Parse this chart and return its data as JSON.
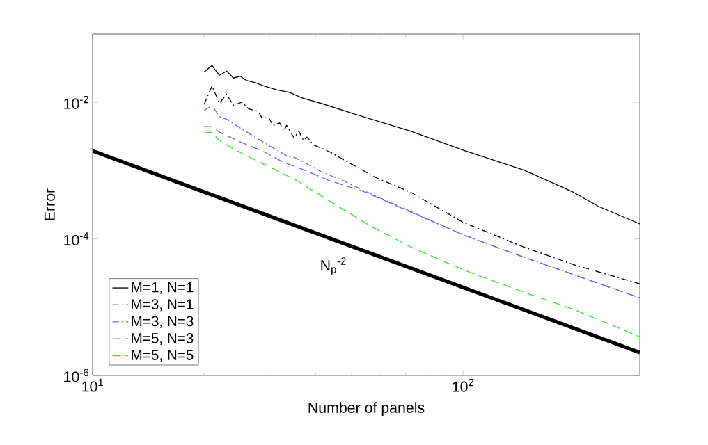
{
  "chart_data": {
    "type": "line",
    "xlabel": "Number of panels",
    "ylabel": "Error",
    "log": "xy",
    "xlim": [
      10,
      300
    ],
    "ylim": [
      1e-06,
      0.1
    ],
    "xticks": [
      {
        "value": 10,
        "label": "10$^{1}$"
      },
      {
        "value": 100,
        "label": "10$^{2}$"
      }
    ],
    "yticks": [
      {
        "value": 1e-06,
        "label": "10$^{-6}$"
      },
      {
        "value": 0.0001,
        "label": "10$^{-4}$"
      },
      {
        "value": 0.01,
        "label": "10$^{-2}$"
      }
    ],
    "grid": false,
    "legend": "bottom left",
    "marker": "none",
    "annotations": [
      "N$_{p}$$^{-2}$"
    ],
    "series": [
      {
        "name": "M=1, N=1",
        "color": "#000000",
        "line_style": "solid",
        "x": [
          20,
          21,
          22,
          23,
          24,
          25,
          26,
          27.5,
          29,
          31.4,
          34,
          36.8,
          41.3,
          49,
          72.4,
          100,
          146,
          199,
          232,
          300
        ],
        "values": [
          0.0279,
          0.0346,
          0.0249,
          0.0287,
          0.0227,
          0.0242,
          0.021,
          0.0194,
          0.0174,
          0.0153,
          0.014,
          0.0116,
          0.0097,
          0.0072,
          0.00377,
          0.002,
          0.00102,
          0.00048,
          0.0003,
          0.000166
        ]
      },
      {
        "name": "M=3, N=1",
        "color": "#000000",
        "line_style": "dashdot",
        "x": [
          20,
          21,
          22,
          23,
          24,
          25.3,
          26.4,
          28,
          28.7,
          29.8,
          30.7,
          32,
          32.8,
          33.4,
          35,
          36,
          37.1,
          37.9,
          39.5,
          43.7,
          49,
          53,
          58.2,
          72.4,
          100,
          146,
          199,
          300
        ],
        "values": [
          0.0093,
          0.0174,
          0.0097,
          0.0132,
          0.009,
          0.0101,
          0.008,
          0.0074,
          0.0058,
          0.0061,
          0.0046,
          0.005,
          0.0038,
          0.0046,
          0.003,
          0.0038,
          0.00277,
          0.0031,
          0.00238,
          0.00188,
          0.00132,
          0.00105,
          0.00079,
          0.00048,
          0.000175,
          7.6e-05,
          4.2e-05,
          2.2e-05
        ]
      },
      {
        "name": "M=3, N=3",
        "color": "#6464ff",
        "line_style": "dashdot",
        "x": [
          20,
          21,
          22,
          23.1,
          25.6,
          28,
          30.9,
          33.7,
          35.2,
          37.3,
          41.3,
          47.6,
          53.6,
          100,
          146,
          199,
          300
        ],
        "values": [
          0.00755,
          0.009,
          0.0062,
          0.0056,
          0.0039,
          0.0029,
          0.00211,
          0.00161,
          0.00155,
          0.00132,
          0.00097,
          0.00071,
          0.00052,
          0.000115,
          5.4e-05,
          3e-05,
          1.37e-05
        ]
      },
      {
        "name": "M=5, N=3",
        "color": "#6464ff",
        "line_style": "dashed",
        "x": [
          20,
          21,
          22,
          24.9,
          28.7,
          32.8,
          36.8,
          43.7,
          53.6,
          100,
          146,
          199,
          300
        ],
        "values": [
          0.00444,
          0.00437,
          0.00365,
          0.00267,
          0.00195,
          0.00132,
          0.00105,
          0.00071,
          0.0005,
          0.000115,
          5.4e-05,
          3e-05,
          1.37e-05
        ]
      },
      {
        "name": "M=5, N=5",
        "color": "#33e633",
        "line_style": "dashed",
        "x": [
          20,
          21,
          22,
          24.2,
          26.7,
          30.9,
          35.7,
          40,
          49,
          57,
          72.4,
          100,
          146,
          199,
          300
        ],
        "values": [
          0.00357,
          0.00365,
          0.00277,
          0.00203,
          0.00155,
          0.00105,
          0.00071,
          0.00048,
          0.000245,
          0.000148,
          7.6e-05,
          3.55e-05,
          1.66e-05,
          9.3e-06,
          3.7e-06
        ]
      },
      {
        "color": "#000000",
        "line_style": "solid",
        "x": [
          10,
          300
        ],
        "values": [
          0.00195,
          2.17e-06
        ]
      }
    ]
  }
}
